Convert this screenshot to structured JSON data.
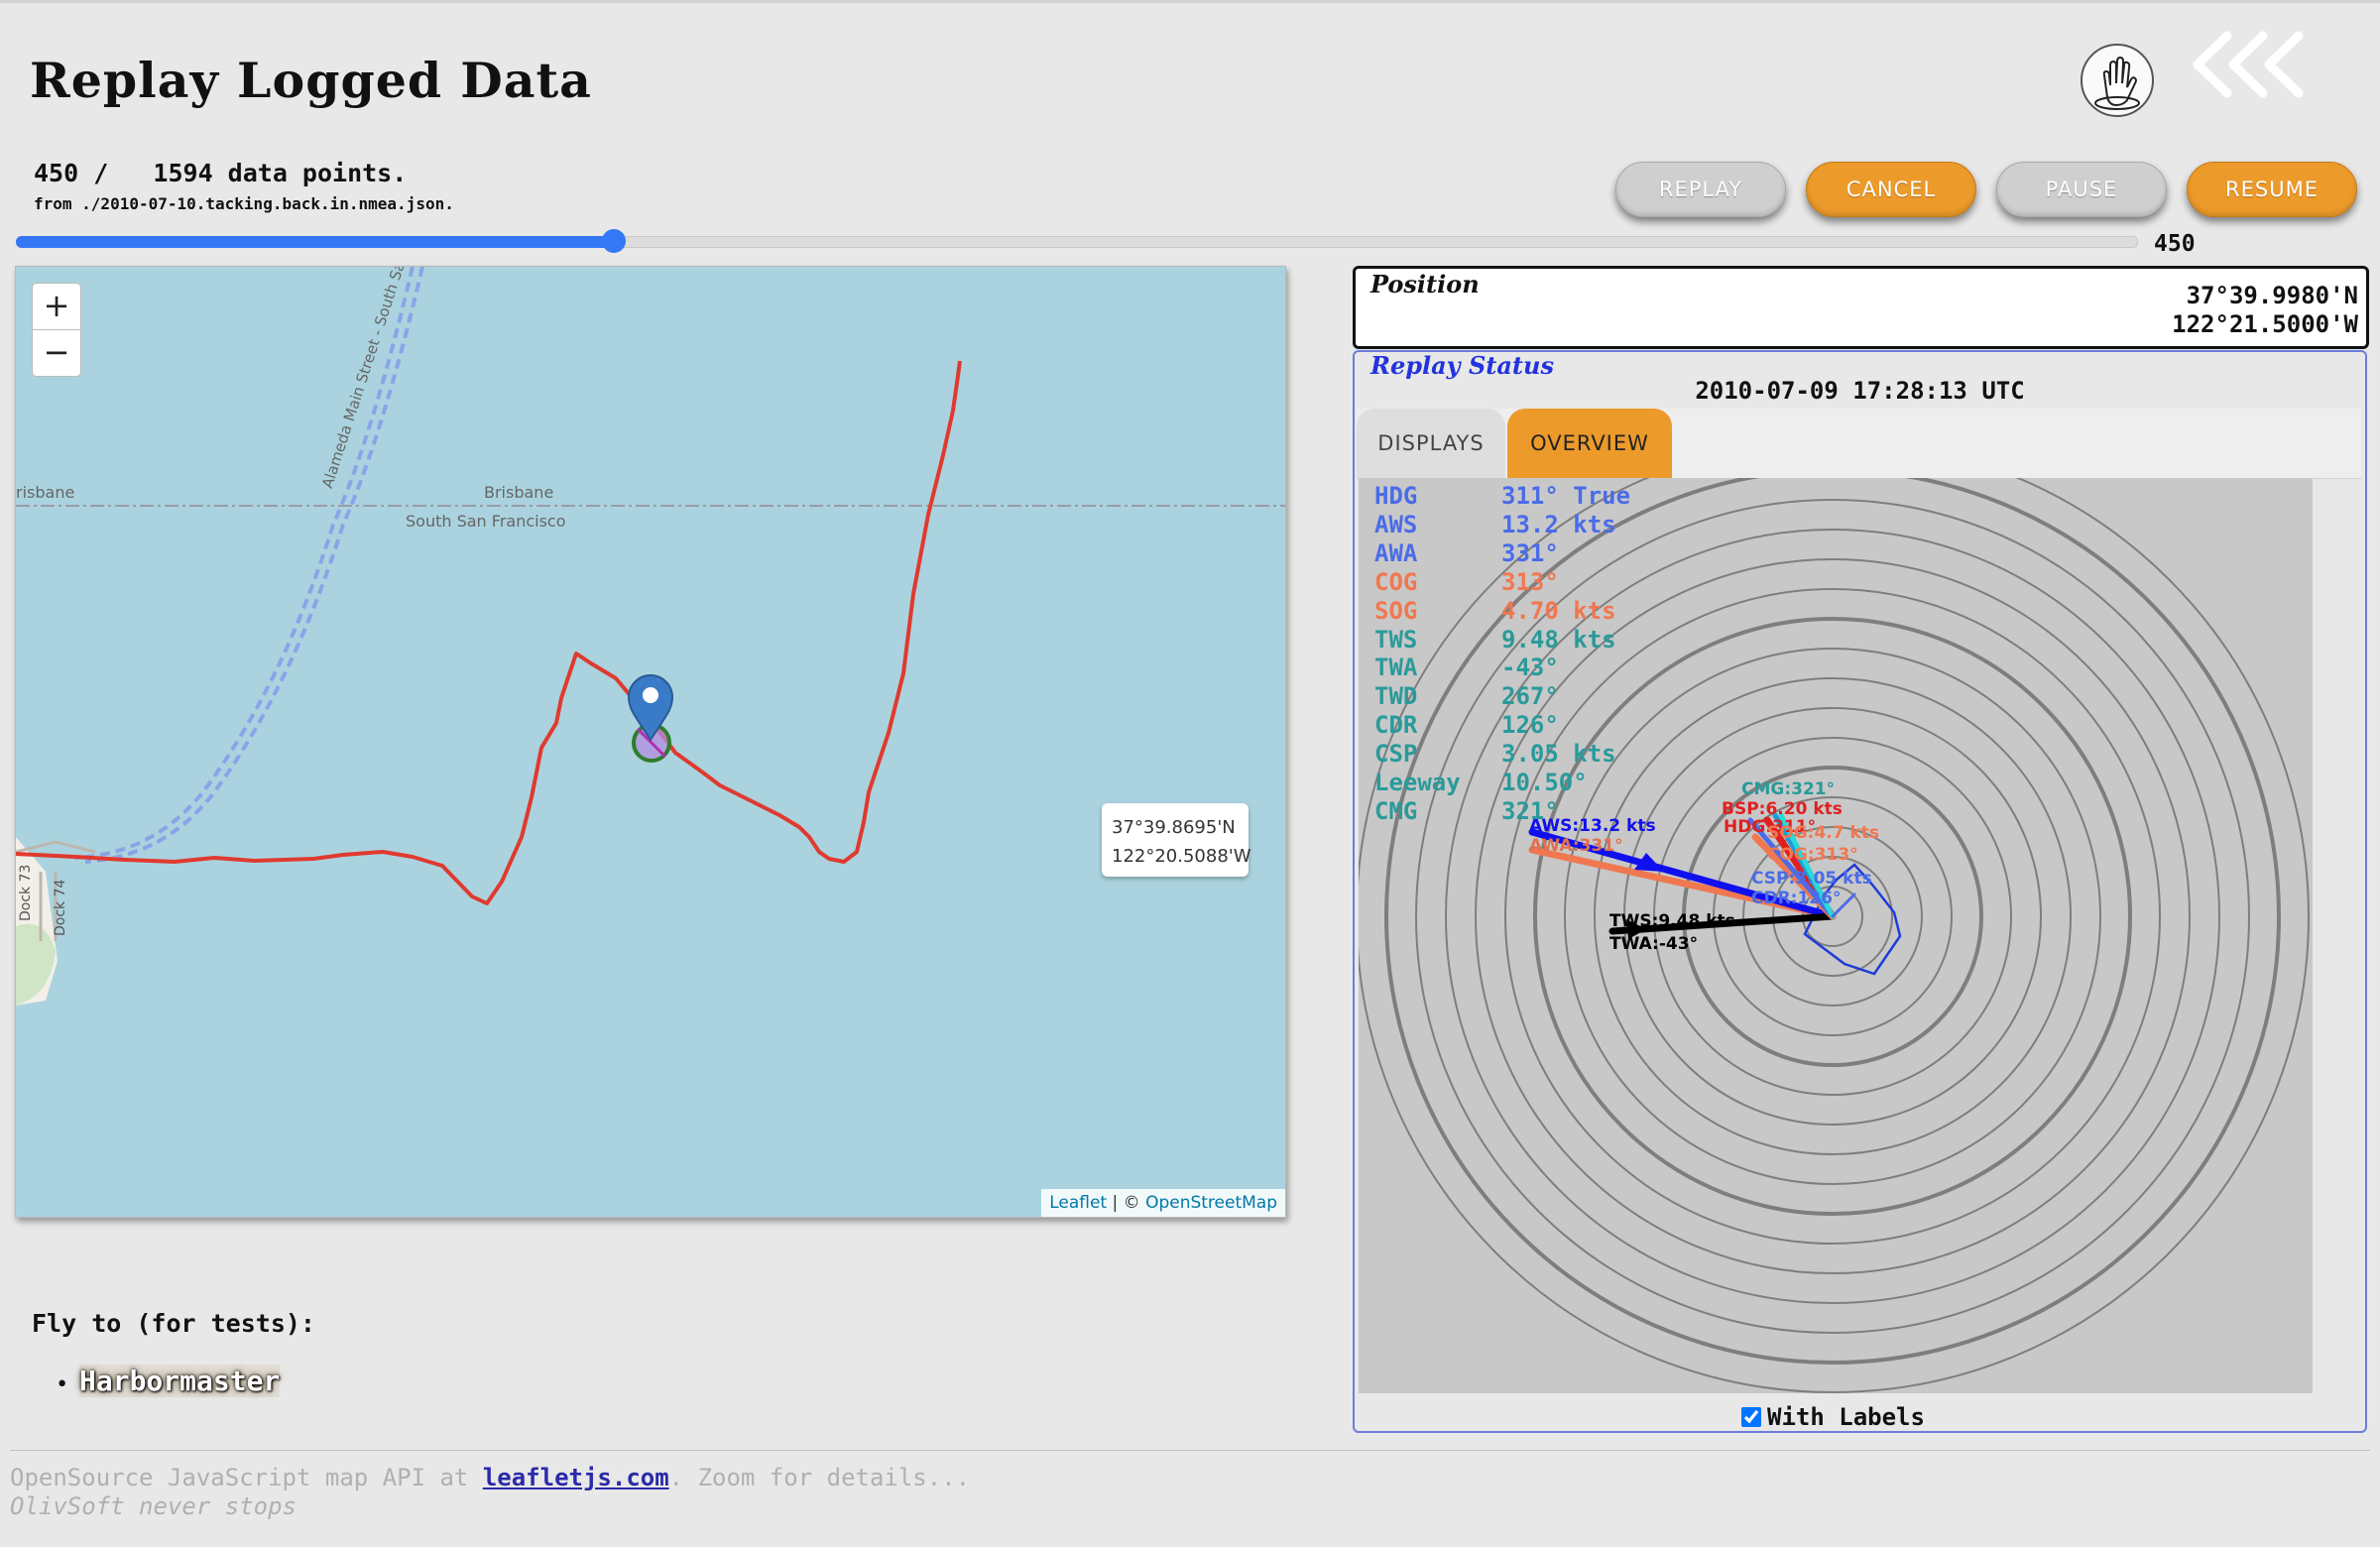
{
  "page": {
    "title": "Replay Logged Data"
  },
  "header": {
    "hand_icon": "hand-raised-icon",
    "back_icon": "triple-chevron-left-icon"
  },
  "replay": {
    "count_text": "450 /   1594 data points.",
    "source_text": "from ./2010-07-10.tacking.back.in.nmea.json.",
    "progress_fraction": 0.282,
    "slider_value": "450"
  },
  "buttons": {
    "replay": "REPLAY",
    "cancel": "CANCEL",
    "pause": "PAUSE",
    "resume": "RESUME"
  },
  "map": {
    "zoom_in": "+",
    "zoom_out": "−",
    "labels": {
      "brisbane_left": "risbane",
      "brisbane": "Brisbane",
      "south_sf": "South San Francisco",
      "street": "Alameda Main Street - South Sa",
      "dock73": "Dock 73",
      "dock74": "Dock 74"
    },
    "tooltip_lat": "37°39.8695'N",
    "tooltip_lon": "122°20.5088'W",
    "attribution_leaflet": "Leaflet",
    "attribution_sep": " | © ",
    "attribution_osm": "OpenStreetMap",
    "track_color": "#e03a2e"
  },
  "position": {
    "title": "Position",
    "lat": "37°39.9980'N",
    "lon": "122°21.5000'W"
  },
  "replay_status": {
    "title": "Replay Status",
    "timestamp": "2010-07-09 17:28:13 UTC",
    "tabs": [
      "DISPLAYS",
      "OVERVIEW"
    ],
    "active_tab": "OVERVIEW",
    "rows": [
      {
        "label": "HDG",
        "value": "311° True",
        "color": "#4a6ce8"
      },
      {
        "label": "AWS",
        "value": "13.2 kts",
        "color": "#4a6ce8"
      },
      {
        "label": "AWA",
        "value": "331°",
        "color": "#4a6ce8"
      },
      {
        "label": "COG",
        "value": "313°",
        "color": "#f07850"
      },
      {
        "label": "SOG",
        "value": "4.70 kts",
        "color": "#f07850"
      },
      {
        "label": "TWS",
        "value": "9.48 kts",
        "color": "#2a9a9a"
      },
      {
        "label": "TWA",
        "value": "-43°",
        "color": "#2a9a9a"
      },
      {
        "label": "TWD",
        "value": "267°",
        "color": "#2a9a9a"
      },
      {
        "label": "CDR",
        "value": "126°",
        "color": "#2a9a9a"
      },
      {
        "label": "CSP",
        "value": "3.05 kts",
        "color": "#2a9a9a"
      },
      {
        "label": "Leeway",
        "value": "10.50°",
        "color": "#2a9a9a"
      },
      {
        "label": "CMG",
        "value": "321°",
        "color": "#2a9a9a"
      }
    ],
    "vectors": {
      "aws_label": "AWS:13.2 kts",
      "awa_label": "AWA:331°",
      "tws_label": "TWS:9.48 kts",
      "twa_label": "TWA:-43°",
      "cmg_label": "CMG:321°",
      "bsp_label": "BSP:6.20 kts",
      "hdg_label": "HDG:311°",
      "sog_label": "SOG:4.7 kts",
      "cog_label": "COG:313°",
      "csp_label": "CSP:3.05 kts",
      "cdr_label": "CDR:126°"
    },
    "with_labels": "With Labels",
    "with_labels_checked": true
  },
  "flyto": {
    "title": "Fly to (for tests):",
    "items": [
      "Harbormaster"
    ]
  },
  "footer": {
    "line1_prefix": "OpenSource JavaScript map API at ",
    "line1_link": "leafletjs.com",
    "line1_suffix": ". Zoom for details...",
    "line2": "OlivSoft never stops"
  }
}
